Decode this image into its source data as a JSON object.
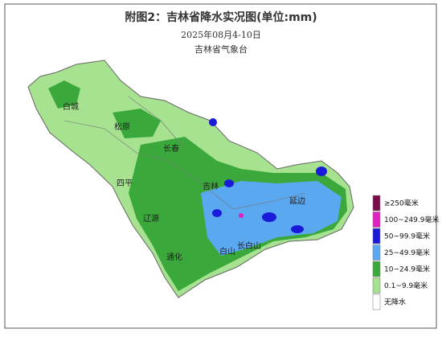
{
  "header": {
    "title": "附图2：吉林省降水实况图(单位:mm)",
    "date": "2025年08月4-10日",
    "agency": "吉林省气象台"
  },
  "cities": [
    "白城",
    "松原",
    "长春",
    "四平",
    "吉林",
    "辽源",
    "延边",
    "通化",
    "白山",
    "长白山"
  ],
  "legend": [
    {
      "label": "≥250毫米",
      "color": "#7b0a4a"
    },
    {
      "label": "100~249.9毫米",
      "color": "#e020c0"
    },
    {
      "label": "50~99.9毫米",
      "color": "#1a1ad8"
    },
    {
      "label": "25~49.9毫米",
      "color": "#5aa8f0"
    },
    {
      "label": "10~24.9毫米",
      "color": "#3aa83a"
    },
    {
      "label": "0.1~9.9毫米",
      "color": "#a6e290"
    },
    {
      "label": "无降水",
      "color": "#ffffff"
    }
  ]
}
